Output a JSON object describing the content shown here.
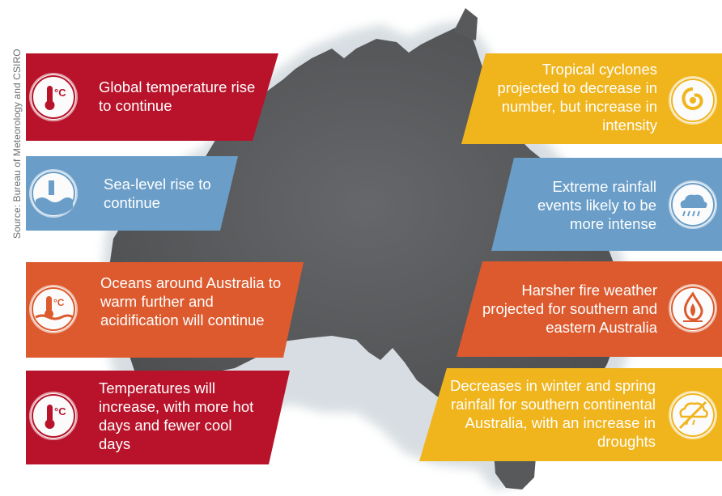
{
  "source_text": "Source: Bureau of Meteorology and CSIRO",
  "colors": {
    "crimson": "#b8132a",
    "blue": "#6a9ec8",
    "orange": "#dc5a2e",
    "yellow": "#f0b41c",
    "map": "#58595b"
  },
  "left_panels": [
    {
      "text": "Global temperature rise to continue",
      "icon": "thermometer-celsius-icon"
    },
    {
      "text": "Sea-level rise to continue",
      "icon": "sea-level-icon"
    },
    {
      "text": "Oceans around Australia to warm further and acidification will continue",
      "icon": "ocean-warming-icon"
    },
    {
      "text": "Temperatures will increase, with more hot days and fewer cool days",
      "icon": "thermometer-celsius-icon"
    }
  ],
  "right_panels": [
    {
      "text": "Tropical cyclones projected to decrease in number, but increase in intensity",
      "icon": "cyclone-icon"
    },
    {
      "text": "Extreme rainfall events likely to be more intense",
      "icon": "rain-cloud-icon"
    },
    {
      "text": "Harsher fire weather projected for southern and eastern Australia",
      "icon": "fire-icon"
    },
    {
      "text": "Decreases in winter and spring rainfall for southern continental Australia, with an increase in droughts",
      "icon": "no-rain-icon"
    }
  ]
}
